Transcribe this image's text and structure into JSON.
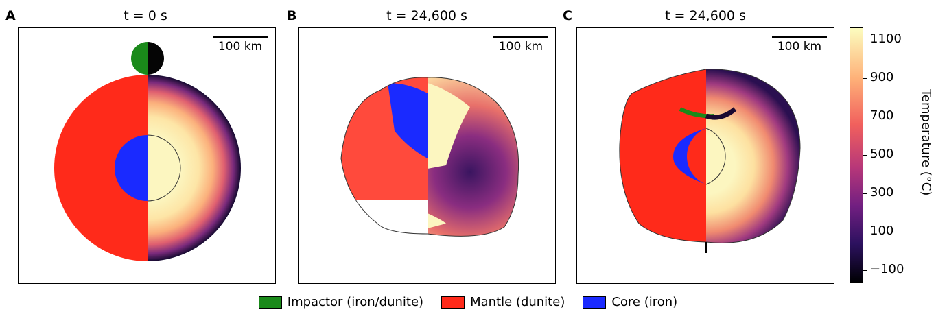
{
  "panels": [
    {
      "letter": "A",
      "title": "t = 0 s",
      "scalebar": "100 km"
    },
    {
      "letter": "B",
      "title": "t = 24,600 s",
      "scalebar": "100 km"
    },
    {
      "letter": "C",
      "title": "t = 24,600 s",
      "scalebar": "100 km"
    }
  ],
  "colorbar": {
    "label": "Temperature (°C)",
    "ticks": [
      "1100",
      "900",
      "700",
      "500",
      "300",
      "100",
      "−100"
    ]
  },
  "legend": [
    {
      "label": "Impactor (iron/dunite)",
      "color": "#1a8a1a"
    },
    {
      "label": "Mantle (dunite)",
      "color": "#ff2a1a"
    },
    {
      "label": "Core (iron)",
      "color": "#1a2aff"
    }
  ],
  "colors": {
    "mantle": "#ff2a1a",
    "core": "#1a2aff",
    "impactor": "#1a8a1a"
  }
}
